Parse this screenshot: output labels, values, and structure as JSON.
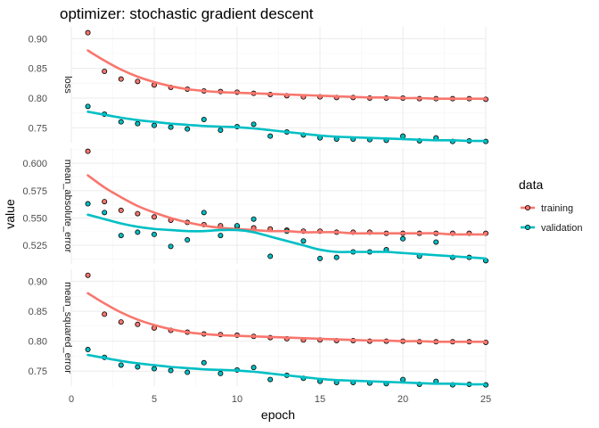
{
  "chart_data": {
    "type": "scatter",
    "title": "optimizer: stochastic gradient descent",
    "xlabel": "epoch",
    "ylabel": "value",
    "xlim": [
      0,
      25
    ],
    "x_ticks": [
      0,
      5,
      10,
      15,
      20,
      25
    ],
    "grid": true,
    "legend": {
      "title": "data",
      "position": "right",
      "entries": [
        "training",
        "validation"
      ]
    },
    "series_colors": {
      "training": "#F8766D",
      "validation": "#00BFC4"
    },
    "panels": [
      {
        "label": "loss",
        "ylim": [
          0.725,
          0.92
        ],
        "y_ticks": [
          0.75,
          0.8,
          0.85,
          0.9
        ],
        "y_tick_labels": [
          "0.75",
          "0.80",
          "0.85",
          "0.90"
        ],
        "series": [
          {
            "name": "training",
            "x": [
              1,
              2,
              3,
              4,
              5,
              6,
              7,
              8,
              9,
              10,
              11,
              12,
              13,
              14,
              15,
              16,
              17,
              18,
              19,
              20,
              21,
              22,
              23,
              24,
              25
            ],
            "values": [
              0.91,
              0.845,
              0.832,
              0.828,
              0.822,
              0.818,
              0.815,
              0.812,
              0.811,
              0.81,
              0.808,
              0.806,
              0.804,
              0.802,
              0.802,
              0.801,
              0.801,
              0.8,
              0.8,
              0.8,
              0.799,
              0.799,
              0.799,
              0.799,
              0.798
            ],
            "smooth": [
              0.88,
              0.863,
              0.848,
              0.836,
              0.827,
              0.82,
              0.815,
              0.812,
              0.81,
              0.809,
              0.808,
              0.807,
              0.806,
              0.805,
              0.804,
              0.803,
              0.802,
              0.801,
              0.801,
              0.8,
              0.8,
              0.799,
              0.799,
              0.799,
              0.799
            ]
          },
          {
            "name": "validation",
            "x": [
              1,
              2,
              3,
              4,
              5,
              6,
              7,
              8,
              9,
              10,
              11,
              12,
              13,
              14,
              15,
              16,
              17,
              18,
              19,
              20,
              21,
              22,
              23,
              24,
              25
            ],
            "values": [
              0.786,
              0.773,
              0.76,
              0.757,
              0.754,
              0.751,
              0.748,
              0.764,
              0.746,
              0.752,
              0.756,
              0.736,
              0.743,
              0.738,
              0.733,
              0.731,
              0.731,
              0.73,
              0.729,
              0.736,
              0.728,
              0.733,
              0.727,
              0.728,
              0.727
            ],
            "smooth": [
              0.777,
              0.772,
              0.767,
              0.763,
              0.76,
              0.757,
              0.755,
              0.753,
              0.752,
              0.751,
              0.749,
              0.746,
              0.743,
              0.74,
              0.737,
              0.735,
              0.734,
              0.733,
              0.732,
              0.731,
              0.73,
              0.729,
              0.729,
              0.728,
              0.728
            ]
          }
        ]
      },
      {
        "label": "mean_absolute_error",
        "ylim": [
          0.508,
          0.614
        ],
        "y_ticks": [
          0.525,
          0.55,
          0.575,
          0.6
        ],
        "y_tick_labels": [
          "0.525",
          "0.550",
          "0.575",
          "0.600"
        ],
        "series": [
          {
            "name": "training",
            "x": [
              1,
              2,
              3,
              4,
              5,
              6,
              7,
              8,
              9,
              10,
              11,
              12,
              13,
              14,
              15,
              16,
              17,
              18,
              19,
              20,
              21,
              22,
              23,
              24,
              25
            ],
            "values": [
              0.611,
              0.565,
              0.557,
              0.554,
              0.551,
              0.548,
              0.546,
              0.544,
              0.543,
              0.542,
              0.541,
              0.54,
              0.539,
              0.538,
              0.538,
              0.537,
              0.537,
              0.537,
              0.536,
              0.536,
              0.536,
              0.536,
              0.536,
              0.536,
              0.536
            ],
            "smooth": [
              0.589,
              0.578,
              0.569,
              0.561,
              0.555,
              0.55,
              0.546,
              0.543,
              0.541,
              0.54,
              0.539,
              0.538,
              0.538,
              0.537,
              0.537,
              0.537,
              0.536,
              0.536,
              0.536,
              0.536,
              0.536,
              0.536,
              0.535,
              0.535,
              0.535
            ]
          },
          {
            "name": "validation",
            "x": [
              1,
              2,
              3,
              4,
              5,
              6,
              7,
              8,
              9,
              10,
              11,
              12,
              13,
              14,
              15,
              16,
              17,
              18,
              19,
              20,
              21,
              22,
              23,
              24,
              25
            ],
            "values": [
              0.563,
              0.555,
              0.534,
              0.537,
              0.535,
              0.524,
              0.53,
              0.555,
              0.534,
              0.543,
              0.549,
              0.515,
              0.538,
              0.529,
              0.513,
              0.514,
              0.519,
              0.519,
              0.521,
              0.531,
              0.515,
              0.528,
              0.514,
              0.514,
              0.511
            ],
            "smooth": [
              0.553,
              0.549,
              0.545,
              0.542,
              0.54,
              0.539,
              0.538,
              0.538,
              0.539,
              0.539,
              0.537,
              0.533,
              0.529,
              0.525,
              0.521,
              0.519,
              0.519,
              0.519,
              0.519,
              0.518,
              0.517,
              0.516,
              0.515,
              0.514,
              0.513
            ]
          }
        ]
      },
      {
        "label": "mean_squared_error",
        "ylim": [
          0.725,
          0.92
        ],
        "y_ticks": [
          0.75,
          0.8,
          0.85,
          0.9
        ],
        "y_tick_labels": [
          "0.75",
          "0.80",
          "0.85",
          "0.90"
        ],
        "series": [
          {
            "name": "training",
            "x": [
              1,
              2,
              3,
              4,
              5,
              6,
              7,
              8,
              9,
              10,
              11,
              12,
              13,
              14,
              15,
              16,
              17,
              18,
              19,
              20,
              21,
              22,
              23,
              24,
              25
            ],
            "values": [
              0.91,
              0.845,
              0.832,
              0.828,
              0.822,
              0.818,
              0.815,
              0.812,
              0.811,
              0.81,
              0.808,
              0.806,
              0.804,
              0.802,
              0.802,
              0.801,
              0.801,
              0.8,
              0.8,
              0.8,
              0.799,
              0.799,
              0.799,
              0.799,
              0.798
            ],
            "smooth": [
              0.88,
              0.863,
              0.848,
              0.836,
              0.827,
              0.82,
              0.815,
              0.812,
              0.81,
              0.809,
              0.808,
              0.807,
              0.806,
              0.805,
              0.804,
              0.803,
              0.802,
              0.801,
              0.801,
              0.8,
              0.8,
              0.799,
              0.799,
              0.799,
              0.799
            ]
          },
          {
            "name": "validation",
            "x": [
              1,
              2,
              3,
              4,
              5,
              6,
              7,
              8,
              9,
              10,
              11,
              12,
              13,
              14,
              15,
              16,
              17,
              18,
              19,
              20,
              21,
              22,
              23,
              24,
              25
            ],
            "values": [
              0.786,
              0.773,
              0.76,
              0.757,
              0.754,
              0.751,
              0.748,
              0.764,
              0.746,
              0.752,
              0.756,
              0.736,
              0.743,
              0.738,
              0.733,
              0.731,
              0.731,
              0.73,
              0.729,
              0.736,
              0.728,
              0.733,
              0.727,
              0.728,
              0.727
            ],
            "smooth": [
              0.777,
              0.772,
              0.767,
              0.763,
              0.76,
              0.757,
              0.755,
              0.753,
              0.752,
              0.751,
              0.749,
              0.746,
              0.743,
              0.74,
              0.737,
              0.735,
              0.734,
              0.733,
              0.732,
              0.731,
              0.73,
              0.729,
              0.729,
              0.728,
              0.728
            ]
          }
        ]
      }
    ]
  }
}
